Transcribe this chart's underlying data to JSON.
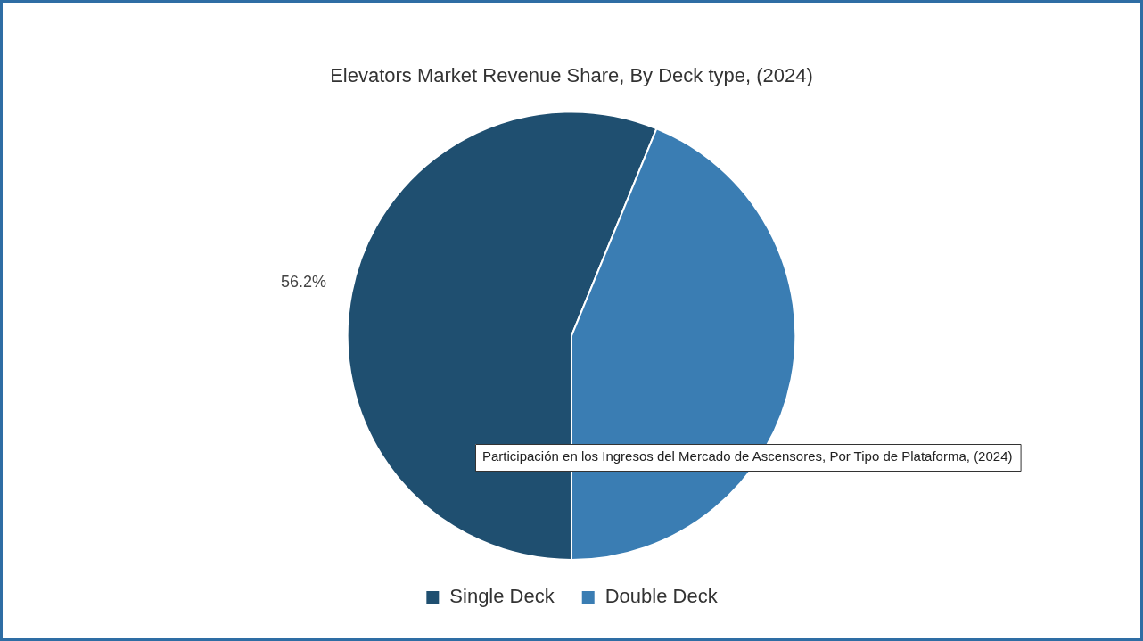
{
  "chart_data": {
    "type": "pie",
    "title": "Elevators Market Revenue Share, By Deck type, (2024)",
    "categories": [
      "Single Deck",
      "Double Deck"
    ],
    "values": [
      56.2,
      43.8
    ],
    "colors": [
      "#1f4f70",
      "#3a7db3"
    ],
    "value_labels": [
      "56.2%",
      null
    ],
    "legend": "bottom",
    "annotations": [
      "Participación en los Ingresos del Mercado de Ascensores, Por Tipo de Plataforma, (2024)"
    ]
  }
}
